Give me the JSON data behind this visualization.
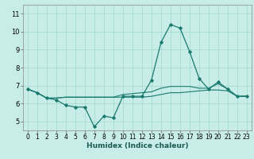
{
  "xlabel": "Humidex (Indice chaleur)",
  "ylabel": "",
  "background_color": "#c8ede8",
  "grid_color": "#a0d8cc",
  "line_color": "#1a7a6e",
  "xlim": [
    -0.5,
    23.5
  ],
  "ylim": [
    4.5,
    11.5
  ],
  "xticks": [
    0,
    1,
    2,
    3,
    4,
    5,
    6,
    7,
    8,
    9,
    10,
    11,
    12,
    13,
    14,
    15,
    16,
    17,
    18,
    19,
    20,
    21,
    22,
    23
  ],
  "yticks": [
    5,
    6,
    7,
    8,
    9,
    10,
    11
  ],
  "series": [
    {
      "x": [
        0,
        1,
        2,
        3,
        4,
        5,
        6,
        7,
        8,
        9,
        10,
        11,
        12,
        13,
        14,
        15,
        16,
        17,
        18,
        19,
        20,
        21,
        22,
        23
      ],
      "y": [
        6.8,
        6.6,
        6.3,
        6.2,
        5.9,
        5.8,
        5.8,
        4.7,
        5.3,
        5.2,
        6.4,
        6.4,
        6.4,
        7.3,
        9.4,
        10.4,
        10.2,
        8.9,
        7.4,
        6.8,
        7.2,
        6.8,
        6.4,
        6.4
      ],
      "marker": true
    },
    {
      "x": [
        0,
        1,
        2,
        3,
        4,
        5,
        6,
        7,
        8,
        9,
        10,
        11,
        12,
        13,
        14,
        15,
        16,
        17,
        18,
        19,
        20,
        21,
        22,
        23
      ],
      "y": [
        6.8,
        6.6,
        6.3,
        6.3,
        6.35,
        6.35,
        6.35,
        6.35,
        6.35,
        6.35,
        6.35,
        6.35,
        6.35,
        6.4,
        6.5,
        6.6,
        6.6,
        6.65,
        6.7,
        6.75,
        6.75,
        6.7,
        6.4,
        6.4
      ],
      "marker": false
    },
    {
      "x": [
        0,
        1,
        2,
        3,
        4,
        5,
        6,
        7,
        8,
        9,
        10,
        11,
        12,
        13,
        14,
        15,
        16,
        17,
        18,
        19,
        20,
        21,
        22,
        23
      ],
      "y": [
        6.8,
        6.6,
        6.3,
        6.3,
        6.35,
        6.35,
        6.35,
        6.35,
        6.35,
        6.35,
        6.5,
        6.55,
        6.6,
        6.65,
        6.85,
        6.95,
        6.95,
        6.95,
        6.85,
        6.85,
        7.1,
        6.8,
        6.4,
        6.4
      ],
      "marker": false
    }
  ]
}
